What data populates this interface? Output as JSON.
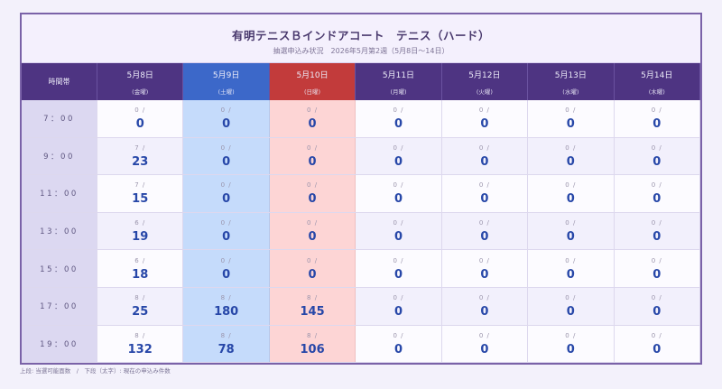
{
  "header": {
    "title": "有明テニスＢインドアコート　テニス（ハード）",
    "subtitle": "抽選申込み状況　2026年5月第2週（5月8日〜14日）"
  },
  "table": {
    "time_header": "時間帯",
    "columns": [
      {
        "date": "5月8日",
        "dow": "(金曜)",
        "type": "weekday"
      },
      {
        "date": "5月9日",
        "dow": "(土曜)",
        "type": "saturday"
      },
      {
        "date": "5月10日",
        "dow": "(日曜)",
        "type": "sunday"
      },
      {
        "date": "5月11日",
        "dow": "(月曜)",
        "type": "weekday"
      },
      {
        "date": "5月12日",
        "dow": "(火曜)",
        "type": "weekday"
      },
      {
        "date": "5月13日",
        "dow": "(水曜)",
        "type": "weekday"
      },
      {
        "date": "5月14日",
        "dow": "(木曜)",
        "type": "weekday"
      }
    ],
    "rows": [
      {
        "time": "7：00",
        "cells": [
          {
            "cap": "0 /",
            "count": "0"
          },
          {
            "cap": "0 /",
            "count": "0"
          },
          {
            "cap": "0 /",
            "count": "0"
          },
          {
            "cap": "0 /",
            "count": "0"
          },
          {
            "cap": "0 /",
            "count": "0"
          },
          {
            "cap": "0 /",
            "count": "0"
          },
          {
            "cap": "0 /",
            "count": "0"
          }
        ]
      },
      {
        "time": "9：00",
        "cells": [
          {
            "cap": "7 /",
            "count": "23"
          },
          {
            "cap": "0 /",
            "count": "0"
          },
          {
            "cap": "0 /",
            "count": "0"
          },
          {
            "cap": "0 /",
            "count": "0"
          },
          {
            "cap": "0 /",
            "count": "0"
          },
          {
            "cap": "0 /",
            "count": "0"
          },
          {
            "cap": "0 /",
            "count": "0"
          }
        ]
      },
      {
        "time": "11：00",
        "cells": [
          {
            "cap": "7 /",
            "count": "15"
          },
          {
            "cap": "0 /",
            "count": "0"
          },
          {
            "cap": "0 /",
            "count": "0"
          },
          {
            "cap": "0 /",
            "count": "0"
          },
          {
            "cap": "0 /",
            "count": "0"
          },
          {
            "cap": "0 /",
            "count": "0"
          },
          {
            "cap": "0 /",
            "count": "0"
          }
        ]
      },
      {
        "time": "13：00",
        "cells": [
          {
            "cap": "6 /",
            "count": "19"
          },
          {
            "cap": "0 /",
            "count": "0"
          },
          {
            "cap": "0 /",
            "count": "0"
          },
          {
            "cap": "0 /",
            "count": "0"
          },
          {
            "cap": "0 /",
            "count": "0"
          },
          {
            "cap": "0 /",
            "count": "0"
          },
          {
            "cap": "0 /",
            "count": "0"
          }
        ]
      },
      {
        "time": "15：00",
        "cells": [
          {
            "cap": "6 /",
            "count": "18"
          },
          {
            "cap": "0 /",
            "count": "0"
          },
          {
            "cap": "0 /",
            "count": "0"
          },
          {
            "cap": "0 /",
            "count": "0"
          },
          {
            "cap": "0 /",
            "count": "0"
          },
          {
            "cap": "0 /",
            "count": "0"
          },
          {
            "cap": "0 /",
            "count": "0"
          }
        ]
      },
      {
        "time": "17：00",
        "cells": [
          {
            "cap": "8 /",
            "count": "25"
          },
          {
            "cap": "8 /",
            "count": "180"
          },
          {
            "cap": "8 /",
            "count": "145"
          },
          {
            "cap": "0 /",
            "count": "0"
          },
          {
            "cap": "0 /",
            "count": "0"
          },
          {
            "cap": "0 /",
            "count": "0"
          },
          {
            "cap": "0 /",
            "count": "0"
          }
        ]
      },
      {
        "time": "19：00",
        "cells": [
          {
            "cap": "8 /",
            "count": "132"
          },
          {
            "cap": "8 /",
            "count": "78"
          },
          {
            "cap": "8 /",
            "count": "106"
          },
          {
            "cap": "0 /",
            "count": "0"
          },
          {
            "cap": "0 /",
            "count": "0"
          },
          {
            "cap": "0 /",
            "count": "0"
          },
          {
            "cap": "0 /",
            "count": "0"
          }
        ]
      }
    ]
  },
  "footer": {
    "legend": "上段: 当選可能面数　/　下段（太字）: 現在の申込み件数"
  },
  "colors": {
    "header_bg": "#4e3482",
    "saturday": "#3c68c9",
    "sunday": "#c23b3b",
    "count_text": "#2747a8"
  }
}
